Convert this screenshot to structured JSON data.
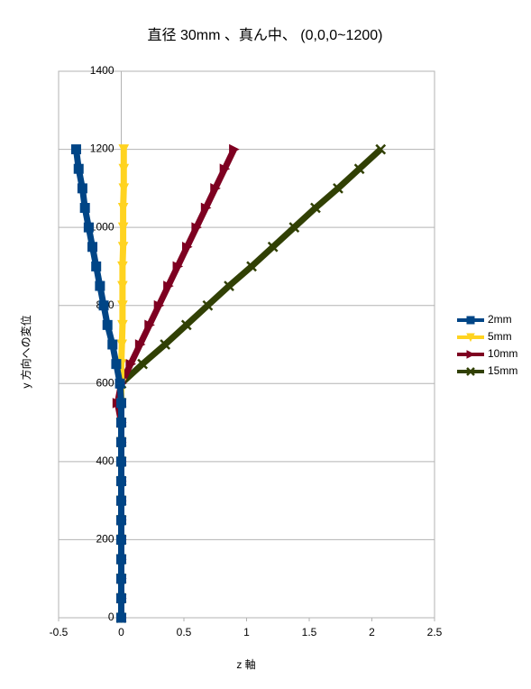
{
  "chart_data": {
    "type": "line",
    "title": "直径 30mm 、真ん中、 (0,0,0~1200)",
    "xlabel": "z 軸",
    "ylabel": "y 方向への変位",
    "xlim": [
      -0.5,
      2.5
    ],
    "xticks": [
      -0.5,
      0,
      0.5,
      1,
      1.5,
      2,
      2.5
    ],
    "ylim": [
      0,
      1400
    ],
    "yticks": [
      0,
      200,
      400,
      600,
      800,
      1000,
      1200,
      1400
    ],
    "grid": true,
    "legend": "right",
    "series": [
      {
        "name": "2mm",
        "color": "#004586",
        "marker": "square",
        "x": [
          0,
          0,
          0,
          0,
          0,
          0,
          0,
          0,
          0,
          0,
          0,
          0,
          -0.01,
          -0.04,
          -0.07,
          -0.11,
          -0.14,
          -0.17,
          -0.2,
          -0.23,
          -0.26,
          -0.29,
          -0.31,
          -0.34,
          -0.36
        ],
        "values": [
          0,
          50,
          100,
          150,
          200,
          250,
          300,
          350,
          400,
          450,
          500,
          550,
          600,
          650,
          700,
          750,
          800,
          850,
          900,
          950,
          1000,
          1050,
          1100,
          1150,
          1200
        ]
      },
      {
        "name": "5mm",
        "color": "#ffd320",
        "marker": "triangle-down",
        "x": [
          0,
          0,
          0,
          0,
          0,
          0,
          0,
          0,
          0,
          0,
          0,
          0,
          0,
          0,
          0.005,
          0.01,
          0.01,
          0.01,
          0.01,
          0.015,
          0.015,
          0.015,
          0.02,
          0.02,
          0.02
        ],
        "values": [
          0,
          50,
          100,
          150,
          200,
          250,
          300,
          350,
          400,
          450,
          500,
          550,
          600,
          650,
          700,
          750,
          800,
          850,
          900,
          950,
          1000,
          1050,
          1100,
          1150,
          1200
        ]
      },
      {
        "name": "10mm",
        "color": "#7e0021",
        "marker": "triangle-right",
        "x": [
          0,
          0,
          0,
          0,
          0,
          0,
          0,
          0,
          0,
          0,
          0,
          -0.03,
          0,
          0.075,
          0.15,
          0.225,
          0.3,
          0.375,
          0.45,
          0.525,
          0.6,
          0.675,
          0.75,
          0.825,
          0.9
        ],
        "values": [
          0,
          50,
          100,
          150,
          200,
          250,
          300,
          350,
          400,
          450,
          500,
          550,
          600,
          650,
          700,
          750,
          800,
          850,
          900,
          950,
          1000,
          1050,
          1100,
          1150,
          1200
        ]
      },
      {
        "name": "15mm",
        "color": "#314004",
        "marker": "x",
        "x": [
          0,
          0,
          0,
          0,
          0,
          0,
          0,
          0,
          0,
          0,
          0,
          0,
          0,
          0.17,
          0.35,
          0.52,
          0.69,
          0.86,
          1.04,
          1.21,
          1.38,
          1.55,
          1.73,
          1.9,
          2.07
        ],
        "values": [
          0,
          50,
          100,
          150,
          200,
          250,
          300,
          350,
          400,
          450,
          500,
          550,
          600,
          650,
          700,
          750,
          800,
          850,
          900,
          950,
          1000,
          1050,
          1100,
          1150,
          1200
        ]
      }
    ]
  }
}
